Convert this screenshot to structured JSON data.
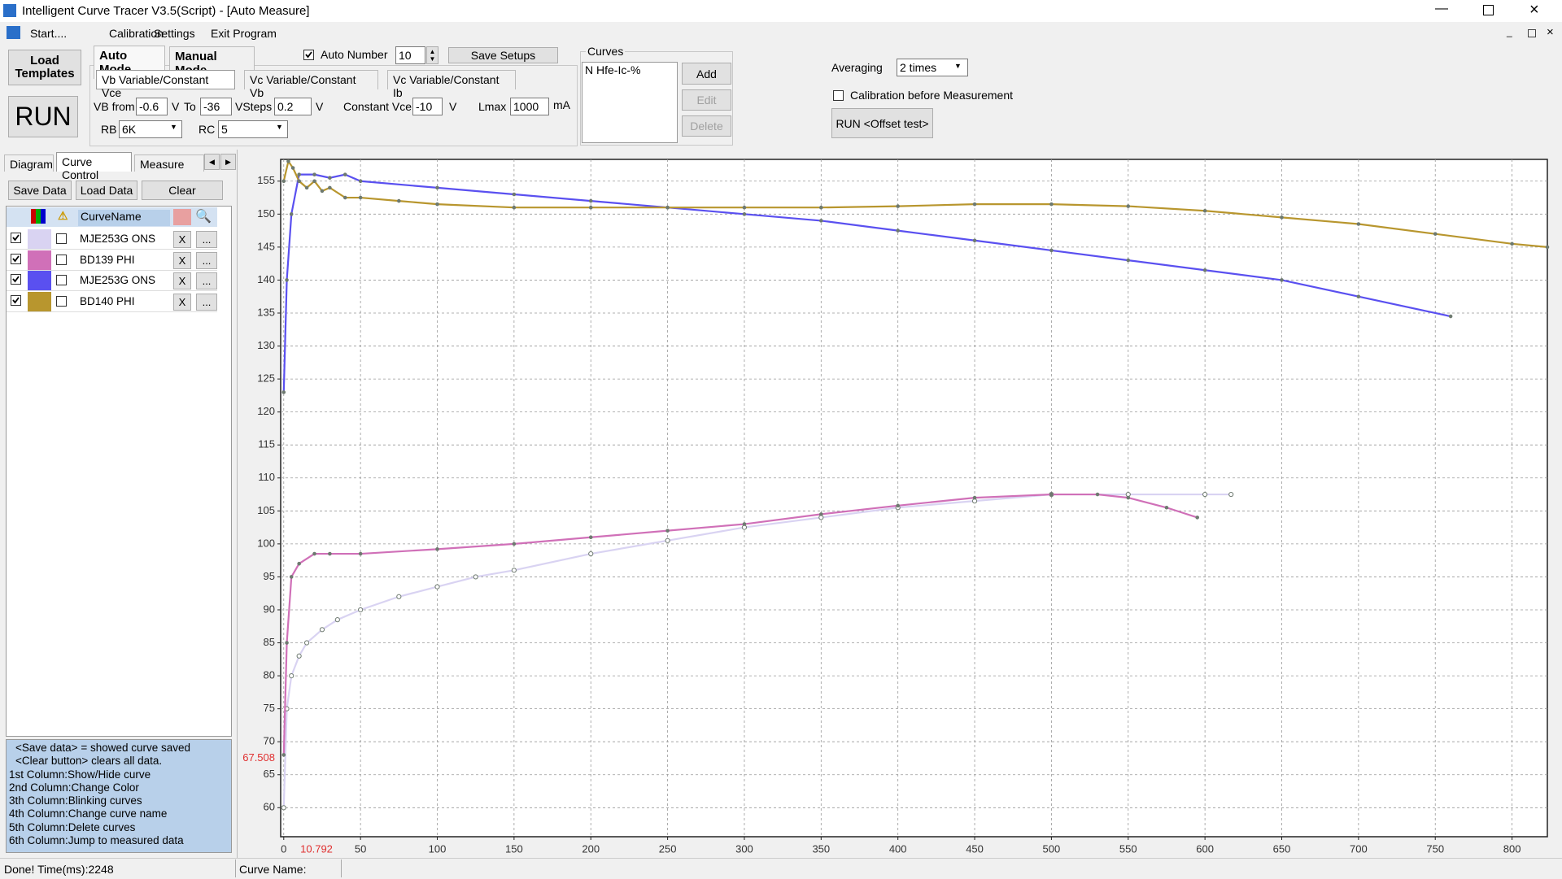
{
  "window": {
    "title": "Intelligent Curve Tracer V3.5(Script) - [Auto Measure]"
  },
  "menu": [
    "Start....",
    "Calibration",
    "Settings",
    "Exit Program"
  ],
  "toolbar": {
    "load_templates": "Load Templates",
    "run": "RUN",
    "auto_mode": "Auto Mode",
    "manual_mode": "Manual Mode",
    "auto_number": {
      "label": "Auto Number",
      "checked": true,
      "value": "10"
    },
    "save_setups": "Save Setups",
    "mode_tabs": [
      "Vb Variable/Constant Vce",
      "Vc Variable/Constant Vb",
      "Vc Variable/Constant Ib"
    ],
    "vb_from": {
      "label": "VB from",
      "value": "-0.6",
      "unit": "V"
    },
    "to": {
      "label": "To",
      "value": "-36"
    },
    "vsteps": {
      "label": "VSteps",
      "value": "0.2",
      "unit": "V"
    },
    "constant_vce": {
      "label": "Constant Vce",
      "value": "-10",
      "unit": "V"
    },
    "lmax": {
      "label": "Lmax",
      "value": "1000",
      "unit": "mA"
    },
    "rb": {
      "label": "RB",
      "value": "6K"
    },
    "rc": {
      "label": "RC",
      "value": "5"
    }
  },
  "curves_box": {
    "title": "Curves",
    "items": [
      "N Hfe-Ic-%"
    ],
    "buttons": [
      "Add",
      "Edit",
      "Delete"
    ]
  },
  "averaging": {
    "label": "Averaging",
    "value": "2 times"
  },
  "calibration": {
    "label": "Calibration before Measurement",
    "checked": false
  },
  "run_offset": "RUN <Offset test>",
  "left_tabs": [
    "Diagram",
    "Curve Control",
    "Measure Dat"
  ],
  "data_buttons": [
    "Save Data",
    "Load Data",
    "Clear"
  ],
  "curve_table": {
    "header": "CurveName",
    "shown": [
      true,
      true,
      true,
      true
    ],
    "blink": [
      false,
      false,
      false,
      false
    ],
    "delete": "X",
    "jump": "..."
  },
  "help": [
    "<Save data> = showed curve saved",
    "<Clear button> clears all data.",
    "1st Column:Show/Hide curve",
    "2nd Column:Change Color",
    "3th Column:Blinking curves",
    "4th Column:Change curve name",
    "5th Column:Delete curves",
    "6th Column:Jump to measured data"
  ],
  "status": {
    "left": "Done!  Time(ms):2248",
    "curve_name": "Curve Name:"
  },
  "chart_data": {
    "type": "line",
    "grid": true,
    "marker_color": "#6e7a70",
    "xlim": [
      -2,
      823
    ],
    "ylim": [
      55.6,
      158.3
    ],
    "xticks": [
      0,
      50,
      100,
      150,
      200,
      250,
      300,
      350,
      400,
      450,
      500,
      550,
      600,
      650,
      700,
      750,
      800
    ],
    "yticks": [
      60,
      65,
      70,
      75,
      80,
      85,
      90,
      95,
      100,
      105,
      110,
      115,
      120,
      125,
      130,
      135,
      140,
      145,
      150,
      155
    ],
    "cursor": {
      "x": 10.792,
      "y": 67.508
    },
    "series": [
      {
        "name": "MJE253G ONS",
        "color": "#d9d3f2",
        "x": [
          0,
          2,
          5,
          10,
          15,
          25,
          35,
          50,
          75,
          100,
          125,
          150,
          200,
          250,
          300,
          350,
          400,
          450,
          500,
          550,
          600,
          617
        ],
        "values": [
          60,
          75,
          80,
          83,
          85,
          87,
          88.5,
          90,
          92,
          93.5,
          95,
          96,
          98.5,
          100.5,
          102.5,
          104,
          105.5,
          106.5,
          107.5,
          107.5,
          107.5,
          107.5
        ]
      },
      {
        "name": "BD139 PHI",
        "color": "#d070b8",
        "x": [
          0,
          2,
          5,
          10,
          20,
          30,
          50,
          100,
          150,
          200,
          250,
          300,
          350,
          400,
          450,
          500,
          530,
          550,
          575,
          595
        ],
        "values": [
          68,
          85,
          95,
          97,
          98.5,
          98.5,
          98.5,
          99.2,
          100,
          101,
          102,
          103,
          104.5,
          105.8,
          107,
          107.5,
          107.5,
          107,
          105.5,
          104
        ]
      },
      {
        "name": "MJE253G ONS",
        "color": "#5a50f0",
        "x": [
          0,
          2,
          5,
          10,
          20,
          30,
          40,
          50,
          100,
          150,
          200,
          250,
          300,
          350,
          400,
          450,
          500,
          550,
          600,
          650,
          700,
          760
        ],
        "values": [
          123,
          140,
          150,
          156,
          156,
          155.5,
          156,
          155,
          154,
          153,
          152,
          151,
          150,
          149,
          147.5,
          146,
          144.5,
          143,
          141.5,
          140,
          137.5,
          134.5
        ]
      },
      {
        "name": "BD140 PHI",
        "color": "#b8962e",
        "x": [
          0,
          3,
          6,
          10,
          15,
          20,
          25,
          30,
          40,
          50,
          75,
          100,
          150,
          200,
          250,
          300,
          350,
          400,
          450,
          500,
          550,
          600,
          650,
          700,
          750,
          800,
          823
        ],
        "values": [
          155,
          158,
          157,
          155,
          154,
          155,
          153.5,
          154,
          152.5,
          152.5,
          152,
          151.5,
          151,
          151,
          151,
          151,
          151,
          151.2,
          151.5,
          151.5,
          151.2,
          150.5,
          149.5,
          148.5,
          147,
          145.5,
          145
        ]
      }
    ]
  }
}
